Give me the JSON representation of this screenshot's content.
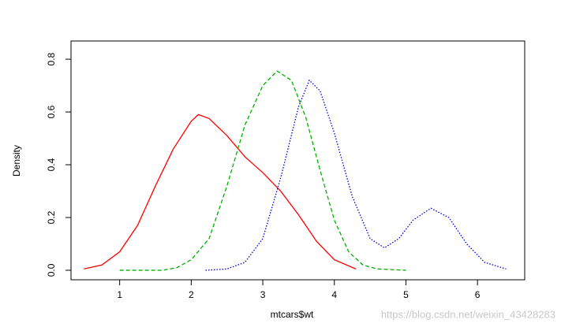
{
  "chart_data": {
    "type": "line",
    "x_label": "mtcars$wt",
    "y_label": "Density",
    "annotation": "https://blog.csdn.net/weixin_43428283",
    "xlim": [
      0.32,
      6.66
    ],
    "ylim": [
      -0.036,
      0.869
    ],
    "xticks": [
      1,
      2,
      3,
      4,
      5,
      6
    ],
    "yticks": [
      {
        "value": 0,
        "label": "0.0"
      },
      0.2,
      0.4,
      0.6,
      0.8
    ],
    "series": [
      {
        "color": "#ff0000",
        "dash": "solid",
        "x": [
          0.5,
          0.75,
          1.0,
          1.25,
          1.5,
          1.75,
          2.0,
          2.1,
          2.25,
          2.5,
          2.75,
          3.0,
          3.25,
          3.5,
          3.75,
          4.0,
          4.3
        ],
        "values": [
          0.005,
          0.02,
          0.07,
          0.17,
          0.32,
          0.46,
          0.565,
          0.59,
          0.575,
          0.51,
          0.43,
          0.37,
          0.3,
          0.21,
          0.11,
          0.04,
          0.005
        ]
      },
      {
        "color": "#00b000",
        "dash": "dashed",
        "x": [
          1.0,
          1.6,
          1.8,
          2.0,
          2.25,
          2.5,
          2.75,
          3.0,
          3.2,
          3.4,
          3.6,
          3.8,
          4.0,
          4.2,
          4.4,
          4.6,
          5.0
        ],
        "values": [
          0,
          0,
          0.01,
          0.04,
          0.12,
          0.32,
          0.55,
          0.7,
          0.755,
          0.72,
          0.58,
          0.38,
          0.19,
          0.07,
          0.02,
          0.005,
          0
        ]
      },
      {
        "color": "#0000cc",
        "dash": "dotted",
        "x": [
          2.2,
          2.5,
          2.75,
          3.0,
          3.25,
          3.5,
          3.65,
          3.8,
          4.0,
          4.25,
          4.5,
          4.7,
          4.9,
          5.1,
          5.35,
          5.6,
          5.85,
          6.1,
          6.4
        ],
        "values": [
          0,
          0.005,
          0.03,
          0.12,
          0.35,
          0.62,
          0.72,
          0.68,
          0.52,
          0.28,
          0.12,
          0.085,
          0.12,
          0.19,
          0.235,
          0.2,
          0.1,
          0.03,
          0.005
        ]
      }
    ]
  }
}
